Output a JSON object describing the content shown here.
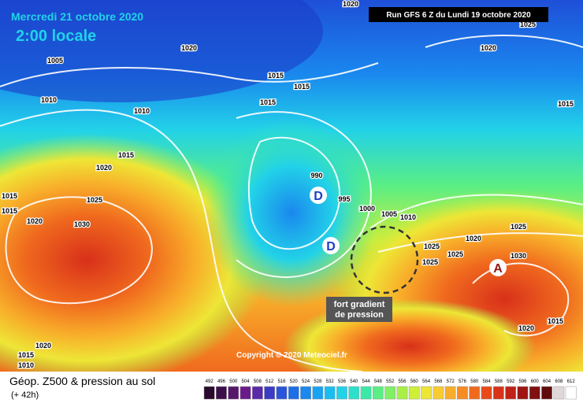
{
  "header": {
    "date": "Mercredi 21 octobre 2020",
    "time": "2:00 locale",
    "run": "Run GFS 6 Z du Lundi 19 octobre 2020"
  },
  "isobar_labels": [
    "1020",
    "1025",
    "1020",
    "1020",
    "1005",
    "1015",
    "1015",
    "1010",
    "1015",
    "1010",
    "1015",
    "1015",
    "1020",
    "990",
    "995",
    "1025",
    "1015",
    "1000",
    "1005",
    "1010",
    "1015",
    "1020",
    "1030",
    "1025",
    "1020",
    "1025",
    "1025",
    "1030",
    "1025",
    "1015",
    "1020",
    "1020",
    "1015",
    "1010"
  ],
  "pressure_centers": [
    "D",
    "D",
    "A"
  ],
  "annotation": {
    "lines": [
      "fort gradient",
      "de pression"
    ]
  },
  "copyright": "Copyright © 2020 Meteociel.fr",
  "legend": {
    "title": "Géop. Z500 & pression au sol",
    "lead_time": "(+ 42h)",
    "labels": [
      "492",
      "496",
      "500",
      "504",
      "508",
      "512",
      "516",
      "520",
      "524",
      "528",
      "532",
      "536",
      "540",
      "544",
      "548",
      "552",
      "556",
      "560",
      "564",
      "568",
      "572",
      "576",
      "580",
      "584",
      "588",
      "592",
      "596",
      "600",
      "604",
      "608",
      "612"
    ],
    "colors": [
      "#2a0a2e",
      "#3d0f4a",
      "#55166b",
      "#6a1b8a",
      "#5a2aa8",
      "#3b3bc4",
      "#2a55d8",
      "#1e6ee6",
      "#1a88ee",
      "#18a2f2",
      "#1cbcf0",
      "#22d2e8",
      "#2ee0cc",
      "#3ce8a8",
      "#5aee84",
      "#80f064",
      "#a8f048",
      "#cfee3a",
      "#eee636",
      "#f8cc30",
      "#f8ae2a",
      "#f68c24",
      "#f06a1e",
      "#e84a1a",
      "#d83218",
      "#c02216",
      "#a01414",
      "#801010",
      "#600c0c",
      "#e0d8d8",
      "#ffffff"
    ]
  }
}
